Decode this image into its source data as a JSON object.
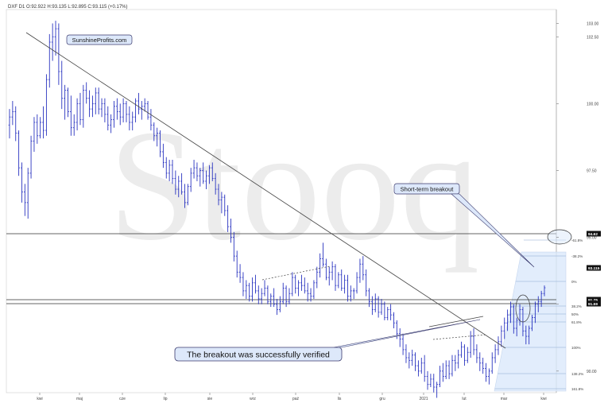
{
  "header": {
    "text": "DXF  D1  O:92.922  H:93.135  L:92.895  C:93.115  (+0.17%)"
  },
  "watermark": "Stooq",
  "colors": {
    "candle": "#2a34c0",
    "trendline": "#444444",
    "fib_zone": "#dbe9fb",
    "callout_fill": "#dde8fa",
    "callout_border": "#3a3a6e",
    "price_box": "#111111",
    "price_box_text": "#ffffff",
    "grid": "#eeeeee",
    "watermark": "#ececec"
  },
  "chart_data": {
    "type": "candlestick",
    "symbol": "DXF",
    "interval": "D1",
    "ohlc_last": {
      "open": 92.922,
      "high": 93.135,
      "low": 92.895,
      "close": 93.115,
      "change": "+0.17%"
    },
    "ylim": [
      89.4,
      103.4
    ],
    "x_ticks": [
      "kwi",
      "maj",
      "cze",
      "lip",
      "sie",
      "wrz",
      "paź",
      "lis",
      "gru",
      "2021",
      "lut",
      "mar",
      "kwi"
    ],
    "y_ticks": [
      {
        "value": 90.0,
        "label": "90.00"
      },
      {
        "value": 92.5,
        "label": "92.50"
      },
      {
        "value": 95.0,
        "label": "95.00"
      },
      {
        "value": 97.5,
        "label": "97.50"
      },
      {
        "value": 100.0,
        "label": "100.00"
      },
      {
        "value": 102.5,
        "label": "102.50"
      },
      {
        "value": 103.0,
        "label": "103.00"
      }
    ],
    "price_labels": [
      {
        "value": 94.62,
        "label": "94.62"
      },
      {
        "value": 93.115,
        "label": "93.115"
      },
      {
        "value": 91.75,
        "label": "91.75"
      },
      {
        "value": 91.59,
        "label": "91.59"
      }
    ],
    "horizontal_levels": [
      94.62,
      91.75,
      91.59
    ],
    "fibonacci": {
      "levels": [
        {
          "value": 94.45,
          "label": "-61.8%"
        },
        {
          "value": 93.75,
          "label": "-38.2%"
        },
        {
          "value": 92.52,
          "label": "0%"
        },
        {
          "value": 91.38,
          "label": "38.2%"
        },
        {
          "value": 90.95,
          "label": "50%"
        },
        {
          "value": 90.55,
          "label": "61.8%"
        },
        {
          "value": 89.47,
          "label": "100%"
        },
        {
          "value": 88.4,
          "label": "138.2%"
        },
        {
          "value": 87.6,
          "label": "161.8%"
        }
      ]
    },
    "annotations": [
      {
        "text": "SunshineProfits.com"
      },
      {
        "text": "Short-term breakout"
      },
      {
        "text": "The breakout was successfully verified"
      }
    ],
    "candles": [
      [
        99.2,
        99.8,
        98.7,
        99.5
      ],
      [
        99.5,
        100.1,
        99.2,
        99.7
      ],
      [
        99.7,
        99.9,
        98.6,
        98.9
      ],
      [
        98.9,
        99.0,
        97.3,
        97.6
      ],
      [
        97.6,
        97.8,
        96.3,
        96.7
      ],
      [
        96.7,
        97.0,
        95.8,
        96.3
      ],
      [
        96.3,
        97.6,
        95.7,
        97.4
      ],
      [
        97.4,
        98.8,
        97.2,
        98.6
      ],
      [
        98.6,
        99.5,
        98.2,
        99.3
      ],
      [
        99.3,
        99.6,
        98.5,
        98.8
      ],
      [
        98.8,
        99.5,
        98.7,
        99.3
      ],
      [
        99.3,
        99.9,
        98.7,
        99.0
      ],
      [
        99.0,
        101.1,
        98.8,
        100.9
      ],
      [
        100.9,
        102.6,
        100.6,
        102.3
      ],
      [
        102.3,
        103.0,
        101.6,
        102.5
      ],
      [
        102.5,
        103.1,
        101.8,
        102.8
      ],
      [
        102.8,
        103.0,
        100.7,
        101.2
      ],
      [
        101.2,
        101.6,
        99.8,
        100.2
      ],
      [
        100.2,
        100.7,
        99.4,
        100.5
      ],
      [
        100.5,
        100.6,
        99.5,
        99.7
      ],
      [
        99.7,
        100.3,
        98.8,
        99.1
      ],
      [
        99.1,
        99.6,
        98.8,
        99.3
      ],
      [
        99.3,
        100.2,
        99.0,
        100.0
      ],
      [
        100.0,
        100.4,
        99.2,
        99.4
      ],
      [
        99.4,
        100.7,
        99.1,
        100.5
      ],
      [
        100.5,
        100.8,
        100.0,
        100.2
      ],
      [
        100.2,
        100.5,
        99.5,
        99.8
      ],
      [
        99.8,
        100.3,
        99.5,
        100.0
      ],
      [
        100.0,
        100.6,
        99.6,
        100.4
      ],
      [
        100.4,
        100.6,
        99.6,
        99.8
      ],
      [
        99.8,
        100.2,
        99.5,
        100.0
      ],
      [
        100.0,
        100.2,
        99.3,
        99.6
      ],
      [
        99.6,
        99.9,
        99.0,
        99.2
      ],
      [
        99.2,
        99.6,
        98.9,
        99.4
      ],
      [
        99.4,
        100.1,
        99.1,
        99.9
      ],
      [
        99.9,
        100.2,
        99.4,
        99.7
      ],
      [
        99.7,
        100.0,
        99.2,
        99.5
      ],
      [
        99.5,
        100.2,
        99.3,
        100.0
      ],
      [
        100.0,
        100.1,
        99.3,
        99.6
      ],
      [
        99.6,
        99.9,
        99.0,
        99.3
      ],
      [
        99.3,
        99.7,
        99.0,
        99.5
      ],
      [
        99.5,
        100.2,
        99.3,
        100.1
      ],
      [
        100.1,
        100.4,
        99.6,
        99.8
      ],
      [
        99.8,
        100.1,
        99.4,
        99.9
      ],
      [
        99.9,
        100.2,
        99.7,
        100.0
      ],
      [
        100.0,
        100.1,
        99.4,
        99.5
      ],
      [
        99.5,
        99.8,
        99.0,
        99.2
      ],
      [
        99.2,
        99.3,
        98.6,
        98.8
      ],
      [
        98.8,
        99.1,
        98.4,
        98.9
      ],
      [
        98.9,
        99.0,
        98.0,
        98.2
      ],
      [
        98.2,
        98.5,
        97.6,
        97.8
      ],
      [
        97.8,
        98.0,
        97.2,
        97.4
      ],
      [
        97.4,
        97.9,
        97.1,
        97.7
      ],
      [
        97.7,
        97.9,
        97.0,
        97.2
      ],
      [
        97.2,
        97.5,
        96.6,
        96.8
      ],
      [
        96.8,
        97.3,
        96.5,
        97.1
      ],
      [
        97.1,
        97.4,
        96.6,
        96.7
      ],
      [
        96.7,
        97.0,
        96.1,
        96.3
      ],
      [
        96.3,
        97.0,
        96.2,
        96.9
      ],
      [
        96.9,
        97.6,
        96.7,
        97.4
      ],
      [
        97.4,
        97.9,
        97.2,
        97.6
      ],
      [
        97.6,
        97.8,
        97.1,
        97.3
      ],
      [
        97.3,
        97.6,
        96.9,
        97.5
      ],
      [
        97.5,
        97.8,
        97.0,
        97.1
      ],
      [
        97.1,
        97.5,
        96.8,
        97.3
      ],
      [
        97.3,
        97.7,
        97.0,
        97.6
      ],
      [
        97.6,
        97.8,
        97.1,
        97.2
      ],
      [
        97.2,
        97.4,
        96.6,
        96.8
      ],
      [
        96.8,
        97.0,
        96.2,
        96.4
      ],
      [
        96.4,
        96.7,
        95.9,
        96.5
      ],
      [
        96.5,
        96.6,
        95.8,
        96.0
      ],
      [
        96.0,
        96.2,
        95.2,
        95.4
      ],
      [
        95.4,
        95.7,
        94.8,
        95.0
      ],
      [
        95.0,
        95.2,
        94.1,
        94.3
      ],
      [
        94.3,
        94.5,
        93.5,
        93.7
      ],
      [
        93.7,
        94.0,
        93.3,
        93.5
      ],
      [
        93.5,
        93.7,
        92.8,
        93.0
      ],
      [
        93.0,
        93.4,
        92.7,
        93.2
      ],
      [
        93.2,
        93.3,
        92.6,
        92.8
      ],
      [
        92.8,
        93.5,
        92.6,
        93.3
      ],
      [
        93.3,
        93.6,
        92.9,
        93.0
      ],
      [
        93.0,
        93.2,
        92.5,
        92.7
      ],
      [
        92.7,
        93.1,
        92.5,
        92.9
      ],
      [
        92.9,
        93.4,
        92.8,
        93.1
      ],
      [
        93.1,
        93.2,
        92.5,
        92.6
      ],
      [
        92.6,
        92.9,
        92.4,
        92.8
      ],
      [
        92.8,
        93.1,
        92.4,
        92.5
      ],
      [
        92.5,
        92.7,
        92.1,
        92.3
      ],
      [
        92.3,
        92.8,
        92.2,
        92.6
      ],
      [
        92.6,
        93.3,
        92.5,
        93.1
      ],
      [
        93.1,
        93.2,
        92.4,
        92.6
      ],
      [
        92.6,
        93.1,
        92.5,
        92.9
      ],
      [
        92.9,
        93.7,
        92.8,
        93.5
      ],
      [
        93.5,
        93.6,
        92.9,
        93.1
      ],
      [
        93.1,
        93.4,
        92.8,
        93.3
      ],
      [
        93.3,
        93.6,
        93.0,
        93.2
      ],
      [
        93.2,
        93.5,
        92.9,
        93.0
      ],
      [
        93.0,
        93.3,
        92.6,
        92.9
      ],
      [
        92.9,
        93.1,
        92.6,
        92.8
      ],
      [
        92.8,
        93.4,
        92.7,
        93.3
      ],
      [
        93.3,
        93.9,
        93.1,
        93.7
      ],
      [
        93.7,
        94.4,
        93.5,
        94.2
      ],
      [
        94.2,
        94.8,
        93.9,
        94.0
      ],
      [
        94.0,
        94.2,
        93.4,
        93.5
      ],
      [
        93.5,
        93.9,
        93.2,
        93.7
      ],
      [
        93.7,
        94.1,
        93.4,
        93.9
      ],
      [
        93.9,
        94.0,
        93.0,
        93.2
      ],
      [
        93.2,
        93.7,
        93.1,
        93.6
      ],
      [
        93.6,
        93.8,
        93.0,
        93.1
      ],
      [
        93.1,
        93.6,
        92.9,
        93.4
      ],
      [
        93.4,
        93.6,
        92.6,
        92.8
      ],
      [
        92.8,
        93.2,
        92.6,
        93.0
      ],
      [
        93.0,
        93.1,
        92.7,
        93.0
      ],
      [
        93.0,
        93.7,
        92.9,
        93.5
      ],
      [
        93.5,
        94.2,
        93.3,
        94.0
      ],
      [
        94.0,
        94.3,
        93.4,
        93.6
      ],
      [
        93.6,
        93.8,
        92.8,
        93.0
      ],
      [
        93.0,
        93.1,
        92.4,
        92.6
      ],
      [
        92.6,
        92.8,
        92.1,
        92.3
      ],
      [
        92.3,
        92.9,
        92.2,
        92.7
      ],
      [
        92.7,
        92.8,
        92.0,
        92.2
      ],
      [
        92.2,
        92.7,
        92.1,
        92.5
      ],
      [
        92.5,
        92.6,
        91.9,
        92.0
      ],
      [
        92.0,
        92.4,
        91.9,
        92.3
      ],
      [
        92.3,
        92.5,
        91.9,
        92.1
      ],
      [
        92.1,
        92.2,
        91.6,
        91.8
      ],
      [
        91.8,
        91.9,
        91.2,
        91.4
      ],
      [
        91.4,
        91.6,
        90.9,
        91.2
      ],
      [
        91.2,
        91.4,
        90.6,
        90.8
      ],
      [
        90.8,
        91.0,
        90.3,
        90.5
      ],
      [
        90.5,
        90.7,
        90.1,
        90.4
      ],
      [
        90.4,
        90.8,
        90.2,
        90.6
      ],
      [
        90.6,
        90.7,
        90.0,
        90.2
      ],
      [
        90.2,
        90.4,
        89.8,
        90.0
      ],
      [
        90.0,
        90.5,
        89.9,
        90.3
      ],
      [
        90.3,
        90.6,
        89.6,
        89.8
      ],
      [
        89.8,
        90.0,
        89.3,
        89.5
      ],
      [
        89.5,
        89.9,
        89.4,
        89.7
      ],
      [
        89.7,
        89.9,
        89.2,
        89.4
      ],
      [
        89.4,
        89.6,
        89.0,
        89.5
      ],
      [
        89.5,
        90.2,
        89.4,
        90.0
      ],
      [
        90.0,
        90.3,
        89.6,
        89.8
      ],
      [
        89.8,
        90.4,
        89.7,
        90.2
      ],
      [
        90.2,
        90.4,
        89.7,
        89.9
      ],
      [
        89.9,
        90.6,
        89.8,
        90.4
      ],
      [
        90.4,
        90.6,
        90.0,
        90.3
      ],
      [
        90.3,
        90.8,
        90.1,
        90.6
      ],
      [
        90.6,
        91.1,
        90.5,
        90.9
      ],
      [
        90.9,
        91.0,
        90.2,
        90.4
      ],
      [
        90.4,
        90.9,
        90.3,
        90.7
      ],
      [
        90.7,
        91.5,
        90.5,
        91.3
      ],
      [
        91.3,
        91.6,
        90.6,
        90.8
      ],
      [
        90.8,
        91.0,
        90.3,
        90.5
      ],
      [
        90.5,
        90.7,
        90.0,
        90.3
      ],
      [
        90.3,
        90.5,
        89.9,
        90.1
      ],
      [
        90.1,
        90.3,
        89.6,
        89.8
      ],
      [
        89.8,
        90.1,
        89.5,
        90.0
      ],
      [
        90.0,
        90.7,
        89.9,
        90.5
      ],
      [
        90.5,
        91.0,
        90.3,
        90.8
      ],
      [
        90.8,
        91.3,
        90.6,
        91.1
      ],
      [
        91.1,
        91.7,
        90.9,
        91.5
      ],
      [
        91.5,
        92.0,
        91.2,
        91.8
      ],
      [
        91.8,
        92.3,
        91.5,
        92.1
      ],
      [
        92.1,
        92.6,
        91.8,
        92.4
      ],
      [
        92.4,
        92.5,
        91.4,
        91.6
      ],
      [
        91.6,
        92.0,
        91.3,
        91.9
      ],
      [
        91.9,
        92.5,
        91.7,
        92.3
      ],
      [
        92.3,
        92.4,
        91.3,
        91.5
      ],
      [
        91.5,
        91.7,
        91.0,
        91.3
      ],
      [
        91.3,
        91.7,
        91.0,
        91.6
      ],
      [
        91.6,
        92.1,
        91.5,
        92.0
      ],
      [
        92.0,
        92.6,
        91.8,
        92.5
      ],
      [
        92.5,
        92.8,
        92.2,
        92.6
      ],
      [
        92.6,
        93.0,
        92.4,
        92.9
      ],
      [
        92.9,
        93.2,
        92.8,
        93.115
      ]
    ]
  }
}
